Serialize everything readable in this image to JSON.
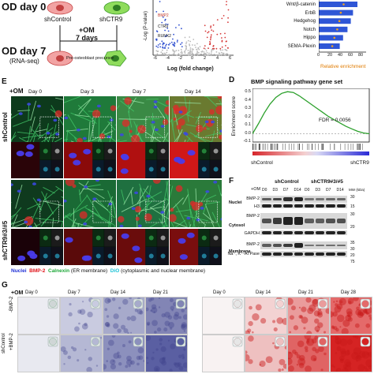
{
  "panelA": {
    "od_day0": "OD day 0",
    "od_day7": "OD day 7",
    "rnaseq": "(RNA-seq)",
    "shcontrol": "shControl",
    "shctr9": "shCTR9",
    "om": "+OM",
    "om_days": "7 days",
    "precursor": "Pre-osteoblast precursor"
  },
  "panelB": {
    "ylabel": "-Log (P-value)",
    "xlabel": "Log (fold change)",
    "x_ticks": [
      "-6",
      "-4",
      "-2",
      "0",
      "2",
      "4",
      "6"
    ],
    "gene_labels": [
      "BMP2",
      "CTR9",
      "RUNX2"
    ]
  },
  "panelC": {
    "xlabel": "Relative enrichment",
    "x_ticks": [
      "0",
      "20",
      "40",
      "60",
      "80"
    ],
    "categories": [
      "Wnt/β-catenin",
      "ErbB",
      "Hedgehog",
      "Notch",
      "Hippo",
      "SEMA-Plexin"
    ]
  },
  "panelD": {
    "letter": "D",
    "title": "BMP signaling pathway gene set",
    "ylabel": "Enrichment score",
    "fdr": "FDR = 0.0056",
    "y_ticks": [
      "0.5",
      "0.4",
      "0.3",
      "0.2",
      "0.1",
      "0.0",
      "-0.1"
    ],
    "left_label": "shControl",
    "right_label": "shCTR9",
    "chart_data": {
      "type": "line",
      "x": [
        0,
        5,
        10,
        15,
        20,
        25,
        30,
        35,
        40,
        45,
        50,
        55,
        60,
        65,
        70,
        75,
        80,
        85,
        90,
        95,
        100
      ],
      "y": [
        0.0,
        0.12,
        0.25,
        0.36,
        0.44,
        0.49,
        0.51,
        0.5,
        0.46,
        0.41,
        0.36,
        0.31,
        0.26,
        0.21,
        0.17,
        0.13,
        0.09,
        0.06,
        0.03,
        0.01,
        0.0
      ],
      "ylim": [
        -0.1,
        0.55
      ],
      "color": "#2ca02c"
    }
  },
  "panelE": {
    "letter": "E",
    "om": "+OM",
    "days": [
      "Day 0",
      "Day 3",
      "Day 7",
      "Day 14"
    ],
    "row1": "shControl",
    "row2": "shCTR9#3/#5",
    "legend": {
      "nuclei": "Nuclei",
      "bmp2": "BMP-2",
      "calnexin": "Calnexin",
      "calnexin_note": "(ER membrane)",
      "dio": "DiO",
      "dio_note": "(cytoplasmic and nuclear membrane)"
    },
    "colors": {
      "nuclei": "#1f2fd6",
      "bmp2": "#e0151b",
      "calnexin": "#1fa83a",
      "dio": "#1ec3d6"
    }
  },
  "panelF": {
    "letter": "F",
    "om": "+OM",
    "group1": "shControl",
    "group2": "shCTR9#3/#5",
    "lanes": [
      "D0",
      "D3",
      "D7",
      "D14",
      "D0",
      "D3",
      "D7",
      "D14"
    ],
    "mw": "MW (kDa)",
    "sections": [
      "Nuclei",
      "Cytosol",
      "Membrane"
    ],
    "proteins": [
      "BMP-2",
      "H3",
      "BMP-2",
      "GAPDH",
      "BMP-2",
      "Na⁺, K⁺-ATPase"
    ],
    "mw_marks": [
      "30",
      "15",
      "30",
      "20",
      "35",
      "30",
      "20",
      "75"
    ]
  },
  "panelG": {
    "letter": "G",
    "om": "+OM",
    "rows": [
      "-BMP-2",
      "+BMP-2"
    ],
    "row_group": "shControl",
    "days_left": [
      "Day 0",
      "Day 7",
      "Day 14",
      "Day 21"
    ],
    "days_right": [
      "Day 0",
      "Day 14",
      "Day 21",
      "Day 28"
    ]
  }
}
